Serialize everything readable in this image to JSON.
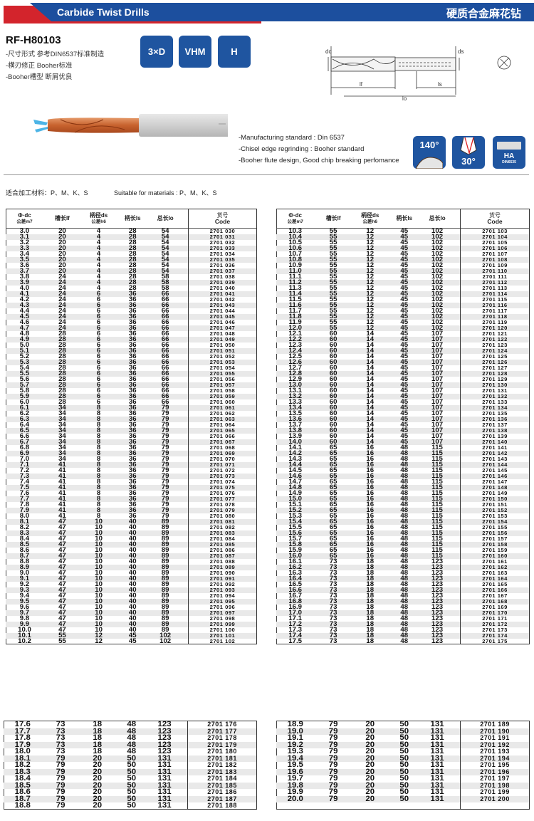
{
  "header": {
    "title_en": "Carbide Twist Drills",
    "title_cn": "硬质合金麻花钻",
    "brand_blue": "#1c4f9e",
    "brand_red": "#d3242c"
  },
  "product": {
    "model": "RF-H80103",
    "bullets_cn": [
      "-尺寸形式  参考DIN6537标准制造",
      "-横刃修正  Booher标准",
      "-Booher槽型  断屑优良"
    ],
    "badges": [
      "3×D",
      "VHM",
      "H"
    ],
    "bullets_en": [
      "-Manufacturing standard : Din 6537",
      "-Chisel edge regrinding : Booher standard",
      "-Booher flute design, Good chip breaking perfomance"
    ],
    "spec_icons": [
      {
        "label": "140°",
        "icon": "point-angle-icon"
      },
      {
        "label": "30°",
        "icon": "helix-angle-icon"
      },
      {
        "label": "HA",
        "sub": "DIN6535",
        "icon": "shank-ha-icon"
      }
    ]
  },
  "diagram": {
    "labels": {
      "dc": "dc",
      "ds": "ds",
      "lf": "lf",
      "ls": "ls",
      "lo": "lo"
    }
  },
  "materials": {
    "cn": "适合加工材料：P、M、K、S",
    "en": "Suitable for materials : P、M、K、S"
  },
  "table_header": [
    {
      "main": "Φ·dc",
      "sub": "公差m7"
    },
    {
      "main": "槽长lf",
      "sub": ""
    },
    {
      "main": "柄径ds",
      "sub": "公差h6"
    },
    {
      "main": "柄长ls",
      "sub": ""
    },
    {
      "main": "总长lo",
      "sub": ""
    },
    {
      "main": "货号",
      "sub": "Code"
    }
  ],
  "tables": {
    "top_left": [
      [
        "3.0",
        "20",
        "4",
        "28",
        "54",
        "2701 030"
      ],
      [
        "3.1",
        "20",
        "4",
        "28",
        "54",
        "2701 031"
      ],
      [
        "3.2",
        "20",
        "4",
        "28",
        "54",
        "2701 032"
      ],
      [
        "3.3",
        "20",
        "4",
        "28",
        "54",
        "2701 033"
      ],
      [
        "3.4",
        "20",
        "4",
        "28",
        "54",
        "2701 034"
      ],
      [
        "3.5",
        "20",
        "4",
        "28",
        "54",
        "2701 035"
      ],
      [
        "3.6",
        "20",
        "4",
        "28",
        "54",
        "2701 036"
      ],
      [
        "3.7",
        "20",
        "4",
        "28",
        "54",
        "2701 037"
      ],
      [
        "3.8",
        "24",
        "4",
        "28",
        "58",
        "2701 038"
      ],
      [
        "3.9",
        "24",
        "4",
        "28",
        "58",
        "2701 039"
      ],
      [
        "4.0",
        "24",
        "4",
        "28",
        "58",
        "2701 040"
      ],
      [
        "4.1",
        "24",
        "6",
        "36",
        "66",
        "2701 041"
      ],
      [
        "4.2",
        "24",
        "6",
        "36",
        "66",
        "2701 042"
      ],
      [
        "4.3",
        "24",
        "6",
        "36",
        "66",
        "2701 043"
      ],
      [
        "4.4",
        "24",
        "6",
        "36",
        "66",
        "2701 044"
      ],
      [
        "4.5",
        "24",
        "6",
        "36",
        "66",
        "2701 045"
      ],
      [
        "4.6",
        "24",
        "6",
        "36",
        "66",
        "2701 046"
      ],
      [
        "4.7",
        "24",
        "6",
        "36",
        "66",
        "2701 047"
      ],
      [
        "4.8",
        "28",
        "6",
        "36",
        "66",
        "2701 048"
      ],
      [
        "4.9",
        "28",
        "6",
        "36",
        "66",
        "2701 049"
      ],
      [
        "5.0",
        "28",
        "6",
        "36",
        "66",
        "2701 050"
      ],
      [
        "5.1",
        "28",
        "6",
        "36",
        "66",
        "2701 051"
      ],
      [
        "5.2",
        "28",
        "6",
        "36",
        "66",
        "2701 052"
      ],
      [
        "5.3",
        "28",
        "6",
        "36",
        "66",
        "2701 053"
      ],
      [
        "5.4",
        "28",
        "6",
        "36",
        "66",
        "2701 054"
      ],
      [
        "5.5",
        "28",
        "6",
        "36",
        "66",
        "2701 055"
      ],
      [
        "5.6",
        "28",
        "6",
        "36",
        "66",
        "2701 056"
      ],
      [
        "5.7",
        "28",
        "6",
        "36",
        "66",
        "2701 057"
      ],
      [
        "5.8",
        "28",
        "6",
        "36",
        "66",
        "2701 058"
      ],
      [
        "5.9",
        "28",
        "6",
        "36",
        "66",
        "2701 059"
      ],
      [
        "6.0",
        "28",
        "6",
        "36",
        "66",
        "2701 060"
      ],
      [
        "6.1",
        "34",
        "8",
        "36",
        "79",
        "2701 061"
      ],
      [
        "6.2",
        "34",
        "8",
        "36",
        "79",
        "2701 062"
      ],
      [
        "6.3",
        "34",
        "8",
        "36",
        "79",
        "2701 063"
      ],
      [
        "6.4",
        "34",
        "8",
        "36",
        "79",
        "2701 064"
      ],
      [
        "6.5",
        "34",
        "8",
        "36",
        "79",
        "2701 065"
      ],
      [
        "6.6",
        "34",
        "8",
        "36",
        "79",
        "2701 066"
      ],
      [
        "6.7",
        "34",
        "8",
        "36",
        "79",
        "2701 067"
      ],
      [
        "6.8",
        "34",
        "8",
        "36",
        "79",
        "2701 068"
      ],
      [
        "6.9",
        "34",
        "8",
        "36",
        "79",
        "2701 069"
      ],
      [
        "7.0",
        "34",
        "8",
        "36",
        "79",
        "2701 070"
      ],
      [
        "7.1",
        "41",
        "8",
        "36",
        "79",
        "2701 071"
      ],
      [
        "7.2",
        "41",
        "8",
        "36",
        "79",
        "2701 072"
      ],
      [
        "7.3",
        "41",
        "8",
        "36",
        "79",
        "2701 073"
      ],
      [
        "7.4",
        "41",
        "8",
        "36",
        "79",
        "2701 074"
      ],
      [
        "7.5",
        "41",
        "8",
        "36",
        "79",
        "2701 075"
      ],
      [
        "7.6",
        "41",
        "8",
        "36",
        "79",
        "2701 076"
      ],
      [
        "7.7",
        "41",
        "8",
        "36",
        "79",
        "2701 077"
      ],
      [
        "7.8",
        "41",
        "8",
        "36",
        "79",
        "2701 078"
      ],
      [
        "7.9",
        "41",
        "8",
        "36",
        "79",
        "2701 079"
      ],
      [
        "8.0",
        "41",
        "8",
        "36",
        "79",
        "2701 080"
      ],
      [
        "8.1",
        "47",
        "10",
        "40",
        "89",
        "2701 081"
      ],
      [
        "8.2",
        "47",
        "10",
        "40",
        "89",
        "2701 082"
      ],
      [
        "8.3",
        "47",
        "10",
        "40",
        "89",
        "2701 083"
      ],
      [
        "8.4",
        "47",
        "10",
        "40",
        "89",
        "2701 084"
      ],
      [
        "8.5",
        "47",
        "10",
        "40",
        "89",
        "2701 085"
      ],
      [
        "8.6",
        "47",
        "10",
        "40",
        "89",
        "2701 086"
      ],
      [
        "8.7",
        "47",
        "10",
        "40",
        "89",
        "2701 087"
      ],
      [
        "8.8",
        "47",
        "10",
        "40",
        "89",
        "2701 088"
      ],
      [
        "8.9",
        "47",
        "10",
        "40",
        "89",
        "2701 089"
      ],
      [
        "9.0",
        "47",
        "10",
        "40",
        "89",
        "2701 090"
      ],
      [
        "9.1",
        "47",
        "10",
        "40",
        "89",
        "2701 091"
      ],
      [
        "9.2",
        "47",
        "10",
        "40",
        "89",
        "2701 092"
      ],
      [
        "9.3",
        "47",
        "10",
        "40",
        "89",
        "2701 093"
      ],
      [
        "9.4",
        "47",
        "10",
        "40",
        "89",
        "2701 094"
      ],
      [
        "9.5",
        "47",
        "10",
        "40",
        "89",
        "2701 095"
      ],
      [
        "9.6",
        "47",
        "10",
        "40",
        "89",
        "2701 096"
      ],
      [
        "9.7",
        "47",
        "10",
        "40",
        "89",
        "2701 097"
      ],
      [
        "9.8",
        "47",
        "10",
        "40",
        "89",
        "2701 098"
      ],
      [
        "9.9",
        "47",
        "10",
        "40",
        "89",
        "2701 099"
      ],
      [
        "10.0",
        "47",
        "10",
        "40",
        "89",
        "2701 100"
      ],
      [
        "10.1",
        "55",
        "12",
        "45",
        "102",
        "2701 101"
      ],
      [
        "10.2",
        "55",
        "12",
        "45",
        "102",
        "2701 102"
      ]
    ],
    "top_right": [
      [
        "10.3",
        "55",
        "12",
        "45",
        "102",
        "2701 103"
      ],
      [
        "10.4",
        "55",
        "12",
        "45",
        "102",
        "2701 104"
      ],
      [
        "10.5",
        "55",
        "12",
        "45",
        "102",
        "2701 105"
      ],
      [
        "10.6",
        "55",
        "12",
        "45",
        "102",
        "2701 106"
      ],
      [
        "10.7",
        "55",
        "12",
        "45",
        "102",
        "2701 107"
      ],
      [
        "10.8",
        "55",
        "12",
        "45",
        "102",
        "2701 108"
      ],
      [
        "10.9",
        "55",
        "12",
        "45",
        "102",
        "2701 109"
      ],
      [
        "11.0",
        "55",
        "12",
        "45",
        "102",
        "2701 110"
      ],
      [
        "11.1",
        "55",
        "12",
        "45",
        "102",
        "2701 111"
      ],
      [
        "11.2",
        "55",
        "12",
        "45",
        "102",
        "2701 112"
      ],
      [
        "11.3",
        "55",
        "12",
        "45",
        "102",
        "2701 113"
      ],
      [
        "11.4",
        "55",
        "12",
        "45",
        "102",
        "2701 114"
      ],
      [
        "11.5",
        "55",
        "12",
        "45",
        "102",
        "2701 115"
      ],
      [
        "11.6",
        "55",
        "12",
        "45",
        "102",
        "2701 116"
      ],
      [
        "11.7",
        "55",
        "12",
        "45",
        "102",
        "2701 117"
      ],
      [
        "11.8",
        "55",
        "12",
        "45",
        "102",
        "2701 118"
      ],
      [
        "11.9",
        "55",
        "12",
        "45",
        "102",
        "2701 119"
      ],
      [
        "12.0",
        "55",
        "12",
        "45",
        "102",
        "2701 120"
      ],
      [
        "12.1",
        "60",
        "14",
        "45",
        "107",
        "2701 121"
      ],
      [
        "12.2",
        "60",
        "14",
        "45",
        "107",
        "2701 122"
      ],
      [
        "12.3",
        "60",
        "14",
        "45",
        "107",
        "2701 123"
      ],
      [
        "12.4",
        "60",
        "14",
        "45",
        "107",
        "2701 124"
      ],
      [
        "12.5",
        "60",
        "14",
        "45",
        "107",
        "2701 125"
      ],
      [
        "12.6",
        "60",
        "14",
        "45",
        "107",
        "2701 126"
      ],
      [
        "12.7",
        "60",
        "14",
        "45",
        "107",
        "2701 127"
      ],
      [
        "12.8",
        "60",
        "14",
        "45",
        "107",
        "2701 128"
      ],
      [
        "12.9",
        "60",
        "14",
        "45",
        "107",
        "2701 129"
      ],
      [
        "13.0",
        "60",
        "14",
        "45",
        "107",
        "2701 130"
      ],
      [
        "13.1",
        "60",
        "14",
        "45",
        "107",
        "2701 131"
      ],
      [
        "13.2",
        "60",
        "14",
        "45",
        "107",
        "2701 132"
      ],
      [
        "13.3",
        "60",
        "14",
        "45",
        "107",
        "2701 133"
      ],
      [
        "13.4",
        "60",
        "14",
        "45",
        "107",
        "2701 134"
      ],
      [
        "13.5",
        "60",
        "14",
        "45",
        "107",
        "2701 135"
      ],
      [
        "13.6",
        "60",
        "14",
        "45",
        "107",
        "2701 136"
      ],
      [
        "13.7",
        "60",
        "14",
        "45",
        "107",
        "2701 137"
      ],
      [
        "13.8",
        "60",
        "14",
        "45",
        "107",
        "2701 138"
      ],
      [
        "13.9",
        "60",
        "14",
        "45",
        "107",
        "2701 139"
      ],
      [
        "14.0",
        "60",
        "14",
        "45",
        "107",
        "2701 140"
      ],
      [
        "14.1",
        "65",
        "16",
        "48",
        "115",
        "2701 141"
      ],
      [
        "14.2",
        "65",
        "16",
        "48",
        "115",
        "2701 142"
      ],
      [
        "14.3",
        "65",
        "16",
        "48",
        "115",
        "2701 143"
      ],
      [
        "14.4",
        "65",
        "16",
        "48",
        "115",
        "2701 144"
      ],
      [
        "14.5",
        "65",
        "16",
        "48",
        "115",
        "2701 145"
      ],
      [
        "14.6",
        "65",
        "16",
        "48",
        "115",
        "2701 146"
      ],
      [
        "14.7",
        "65",
        "16",
        "48",
        "115",
        "2701 147"
      ],
      [
        "14.8",
        "65",
        "16",
        "48",
        "115",
        "2701 148"
      ],
      [
        "14.9",
        "65",
        "16",
        "48",
        "115",
        "2701 149"
      ],
      [
        "15.0",
        "65",
        "16",
        "48",
        "115",
        "2701 150"
      ],
      [
        "15.1",
        "65",
        "16",
        "48",
        "115",
        "2701 151"
      ],
      [
        "15.2",
        "65",
        "16",
        "48",
        "115",
        "2701 152"
      ],
      [
        "15.3",
        "65",
        "16",
        "48",
        "115",
        "2701 153"
      ],
      [
        "15.4",
        "65",
        "16",
        "48",
        "115",
        "2701 154"
      ],
      [
        "15.5",
        "65",
        "16",
        "48",
        "115",
        "2701 155"
      ],
      [
        "15.6",
        "65",
        "16",
        "48",
        "115",
        "2701 156"
      ],
      [
        "15.7",
        "65",
        "16",
        "48",
        "115",
        "2701 157"
      ],
      [
        "15.8",
        "65",
        "16",
        "48",
        "115",
        "2701 158"
      ],
      [
        "15.9",
        "65",
        "16",
        "48",
        "115",
        "2701 159"
      ],
      [
        "16.0",
        "65",
        "16",
        "48",
        "115",
        "2701 160"
      ],
      [
        "16.1",
        "73",
        "18",
        "48",
        "123",
        "2701 161"
      ],
      [
        "16.2",
        "73",
        "18",
        "48",
        "123",
        "2701 162"
      ],
      [
        "16.3",
        "73",
        "18",
        "48",
        "123",
        "2701 163"
      ],
      [
        "16.4",
        "73",
        "18",
        "48",
        "123",
        "2701 164"
      ],
      [
        "16.5",
        "73",
        "18",
        "48",
        "123",
        "2701 165"
      ],
      [
        "16.6",
        "73",
        "18",
        "48",
        "123",
        "2701 166"
      ],
      [
        "16.7",
        "73",
        "18",
        "48",
        "123",
        "2701 167"
      ],
      [
        "16.8",
        "73",
        "18",
        "48",
        "123",
        "2701 168"
      ],
      [
        "16.9",
        "73",
        "18",
        "48",
        "123",
        "2701 169"
      ],
      [
        "17.0",
        "73",
        "18",
        "48",
        "123",
        "2701 170"
      ],
      [
        "17.1",
        "73",
        "18",
        "48",
        "123",
        "2701 171"
      ],
      [
        "17.2",
        "73",
        "18",
        "48",
        "123",
        "2701 172"
      ],
      [
        "17.3",
        "73",
        "18",
        "48",
        "123",
        "2701 173"
      ],
      [
        "17.4",
        "73",
        "18",
        "48",
        "123",
        "2701 174"
      ],
      [
        "17.5",
        "73",
        "18",
        "48",
        "123",
        "2701 175"
      ]
    ],
    "bottom_left": [
      [
        "17.6",
        "73",
        "18",
        "48",
        "123",
        "2701 176"
      ],
      [
        "17.7",
        "73",
        "18",
        "48",
        "123",
        "2701 177"
      ],
      [
        "17.8",
        "73",
        "18",
        "48",
        "123",
        "2701 178"
      ],
      [
        "17.9",
        "73",
        "18",
        "48",
        "123",
        "2701 179"
      ],
      [
        "18.0",
        "73",
        "18",
        "48",
        "123",
        "2701 180"
      ],
      [
        "18.1",
        "79",
        "20",
        "50",
        "131",
        "2701 181"
      ],
      [
        "18.2",
        "79",
        "20",
        "50",
        "131",
        "2701 182"
      ],
      [
        "18.3",
        "79",
        "20",
        "50",
        "131",
        "2701 183"
      ],
      [
        "18.4",
        "79",
        "20",
        "50",
        "131",
        "2701 184"
      ],
      [
        "18.5",
        "79",
        "20",
        "50",
        "131",
        "2701 185"
      ],
      [
        "18.6",
        "79",
        "20",
        "50",
        "131",
        "2701 186"
      ],
      [
        "18.7",
        "79",
        "20",
        "50",
        "131",
        "2701 187"
      ],
      [
        "18.8",
        "79",
        "20",
        "50",
        "131",
        "2701 188"
      ]
    ],
    "bottom_right": [
      [
        "18.9",
        "79",
        "20",
        "50",
        "131",
        "2701 189"
      ],
      [
        "19.0",
        "79",
        "20",
        "50",
        "131",
        "2701 190"
      ],
      [
        "19.1",
        "79",
        "20",
        "50",
        "131",
        "2701 191"
      ],
      [
        "19.2",
        "79",
        "20",
        "50",
        "131",
        "2701 192"
      ],
      [
        "19.3",
        "79",
        "20",
        "50",
        "131",
        "2701 193"
      ],
      [
        "19.4",
        "79",
        "20",
        "50",
        "131",
        "2701 194"
      ],
      [
        "19.5",
        "79",
        "20",
        "50",
        "131",
        "2701 195"
      ],
      [
        "19.6",
        "79",
        "20",
        "50",
        "131",
        "2701 196"
      ],
      [
        "19.7",
        "79",
        "20",
        "50",
        "131",
        "2701 197"
      ],
      [
        "19.8",
        "79",
        "20",
        "50",
        "131",
        "2701 198"
      ],
      [
        "19.9",
        "79",
        "20",
        "50",
        "131",
        "2701 199"
      ],
      [
        "20.0",
        "79",
        "20",
        "50",
        "131",
        "2701 200"
      ]
    ]
  }
}
